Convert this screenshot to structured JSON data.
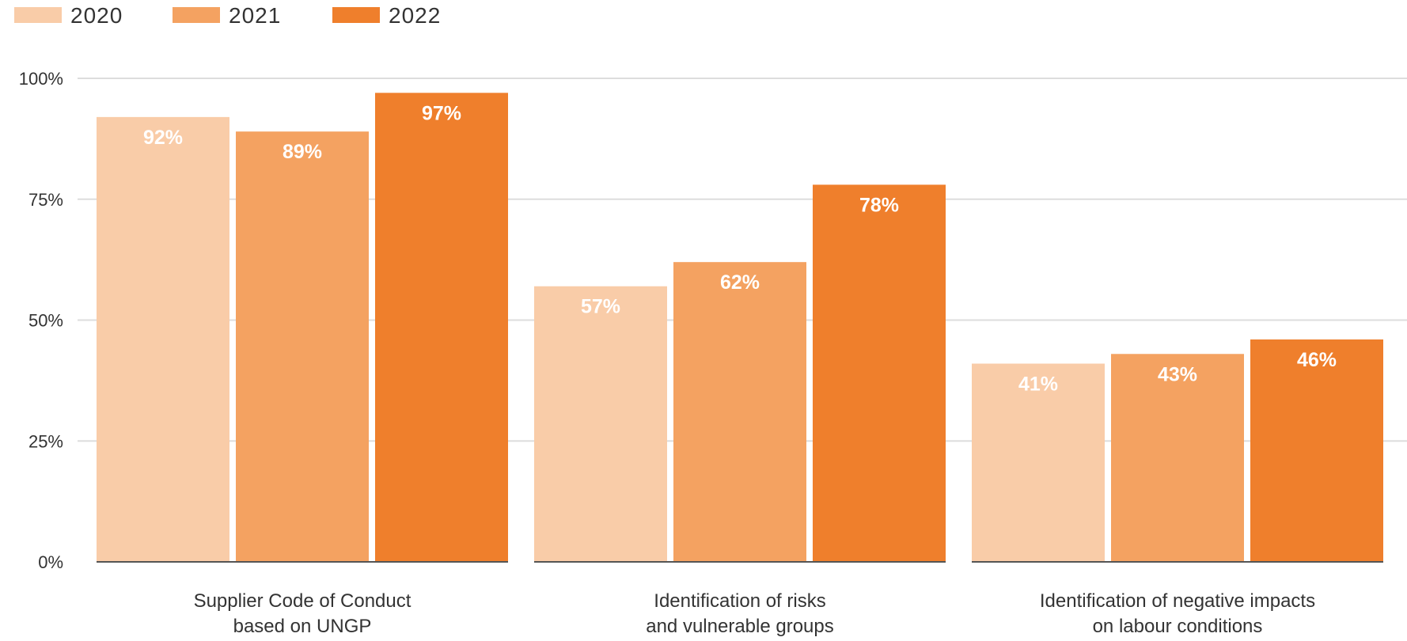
{
  "chart_data": {
    "type": "bar",
    "categories": [
      [
        "Supplier Code of Conduct",
        "based on UNGP"
      ],
      [
        "Identification of risks",
        "and vulnerable groups"
      ],
      [
        "Identification of negative impacts",
        "on labour conditions"
      ]
    ],
    "series": [
      {
        "name": "2020",
        "color": "#F9CCA8",
        "values": [
          92,
          57,
          41
        ],
        "labels": [
          "92%",
          "57%",
          "41%"
        ]
      },
      {
        "name": "2021",
        "color": "#F4A261",
        "values": [
          89,
          62,
          43
        ],
        "labels": [
          "89%",
          "62%",
          "43%"
        ]
      },
      {
        "name": "2022",
        "color": "#EF7F2C",
        "values": [
          97,
          78,
          46
        ],
        "labels": [
          "97%",
          "78%",
          "46%"
        ]
      }
    ],
    "y_ticks": [
      {
        "value": 0,
        "label": "0%"
      },
      {
        "value": 25,
        "label": "25%"
      },
      {
        "value": 50,
        "label": "50%"
      },
      {
        "value": 75,
        "label": "75%"
      },
      {
        "value": 100,
        "label": "100%"
      }
    ],
    "ylim": [
      0,
      100
    ],
    "grid": true,
    "legend_position": "top-left"
  }
}
